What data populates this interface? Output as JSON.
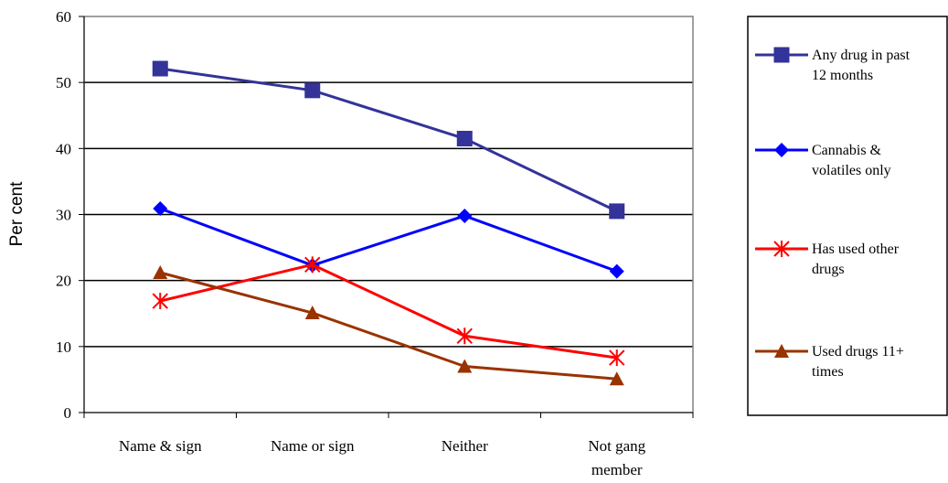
{
  "chart_data": {
    "type": "line",
    "title": "",
    "xlabel": "",
    "ylabel": "Per cent",
    "ylim": [
      0,
      60
    ],
    "yticks": [
      0,
      10,
      20,
      30,
      40,
      50,
      60
    ],
    "grid": "horizontal",
    "legend_position": "right",
    "categories": [
      "Name & sign",
      "Name or sign",
      "Neither",
      "Not gang member"
    ],
    "category_lines": [
      [
        "Name & sign"
      ],
      [
        "Name or sign"
      ],
      [
        "Neither"
      ],
      [
        "Not gang",
        "member"
      ]
    ],
    "series": [
      {
        "name": "Any drug in past 12 months",
        "name_lines": [
          "Any drug in past",
          "12 months"
        ],
        "values": [
          52.1,
          48.8,
          41.5,
          30.5
        ],
        "color": "#333399",
        "marker": "square"
      },
      {
        "name": "Cannabis & volatiles only",
        "name_lines": [
          "Cannabis &",
          "volatiles only"
        ],
        "values": [
          30.9,
          22.3,
          29.8,
          21.4
        ],
        "color": "#0000ff",
        "marker": "diamond"
      },
      {
        "name": "Has used other drugs",
        "name_lines": [
          "Has used other",
          "drugs"
        ],
        "values": [
          16.9,
          22.4,
          11.6,
          8.3
        ],
        "color": "#ff0000",
        "marker": "asterisk"
      },
      {
        "name": "Used drugs 11+ times",
        "name_lines": [
          "Used drugs 11+",
          "times"
        ],
        "values": [
          21.2,
          15.1,
          7.0,
          5.1
        ],
        "color": "#993300",
        "marker": "triangle"
      }
    ]
  }
}
